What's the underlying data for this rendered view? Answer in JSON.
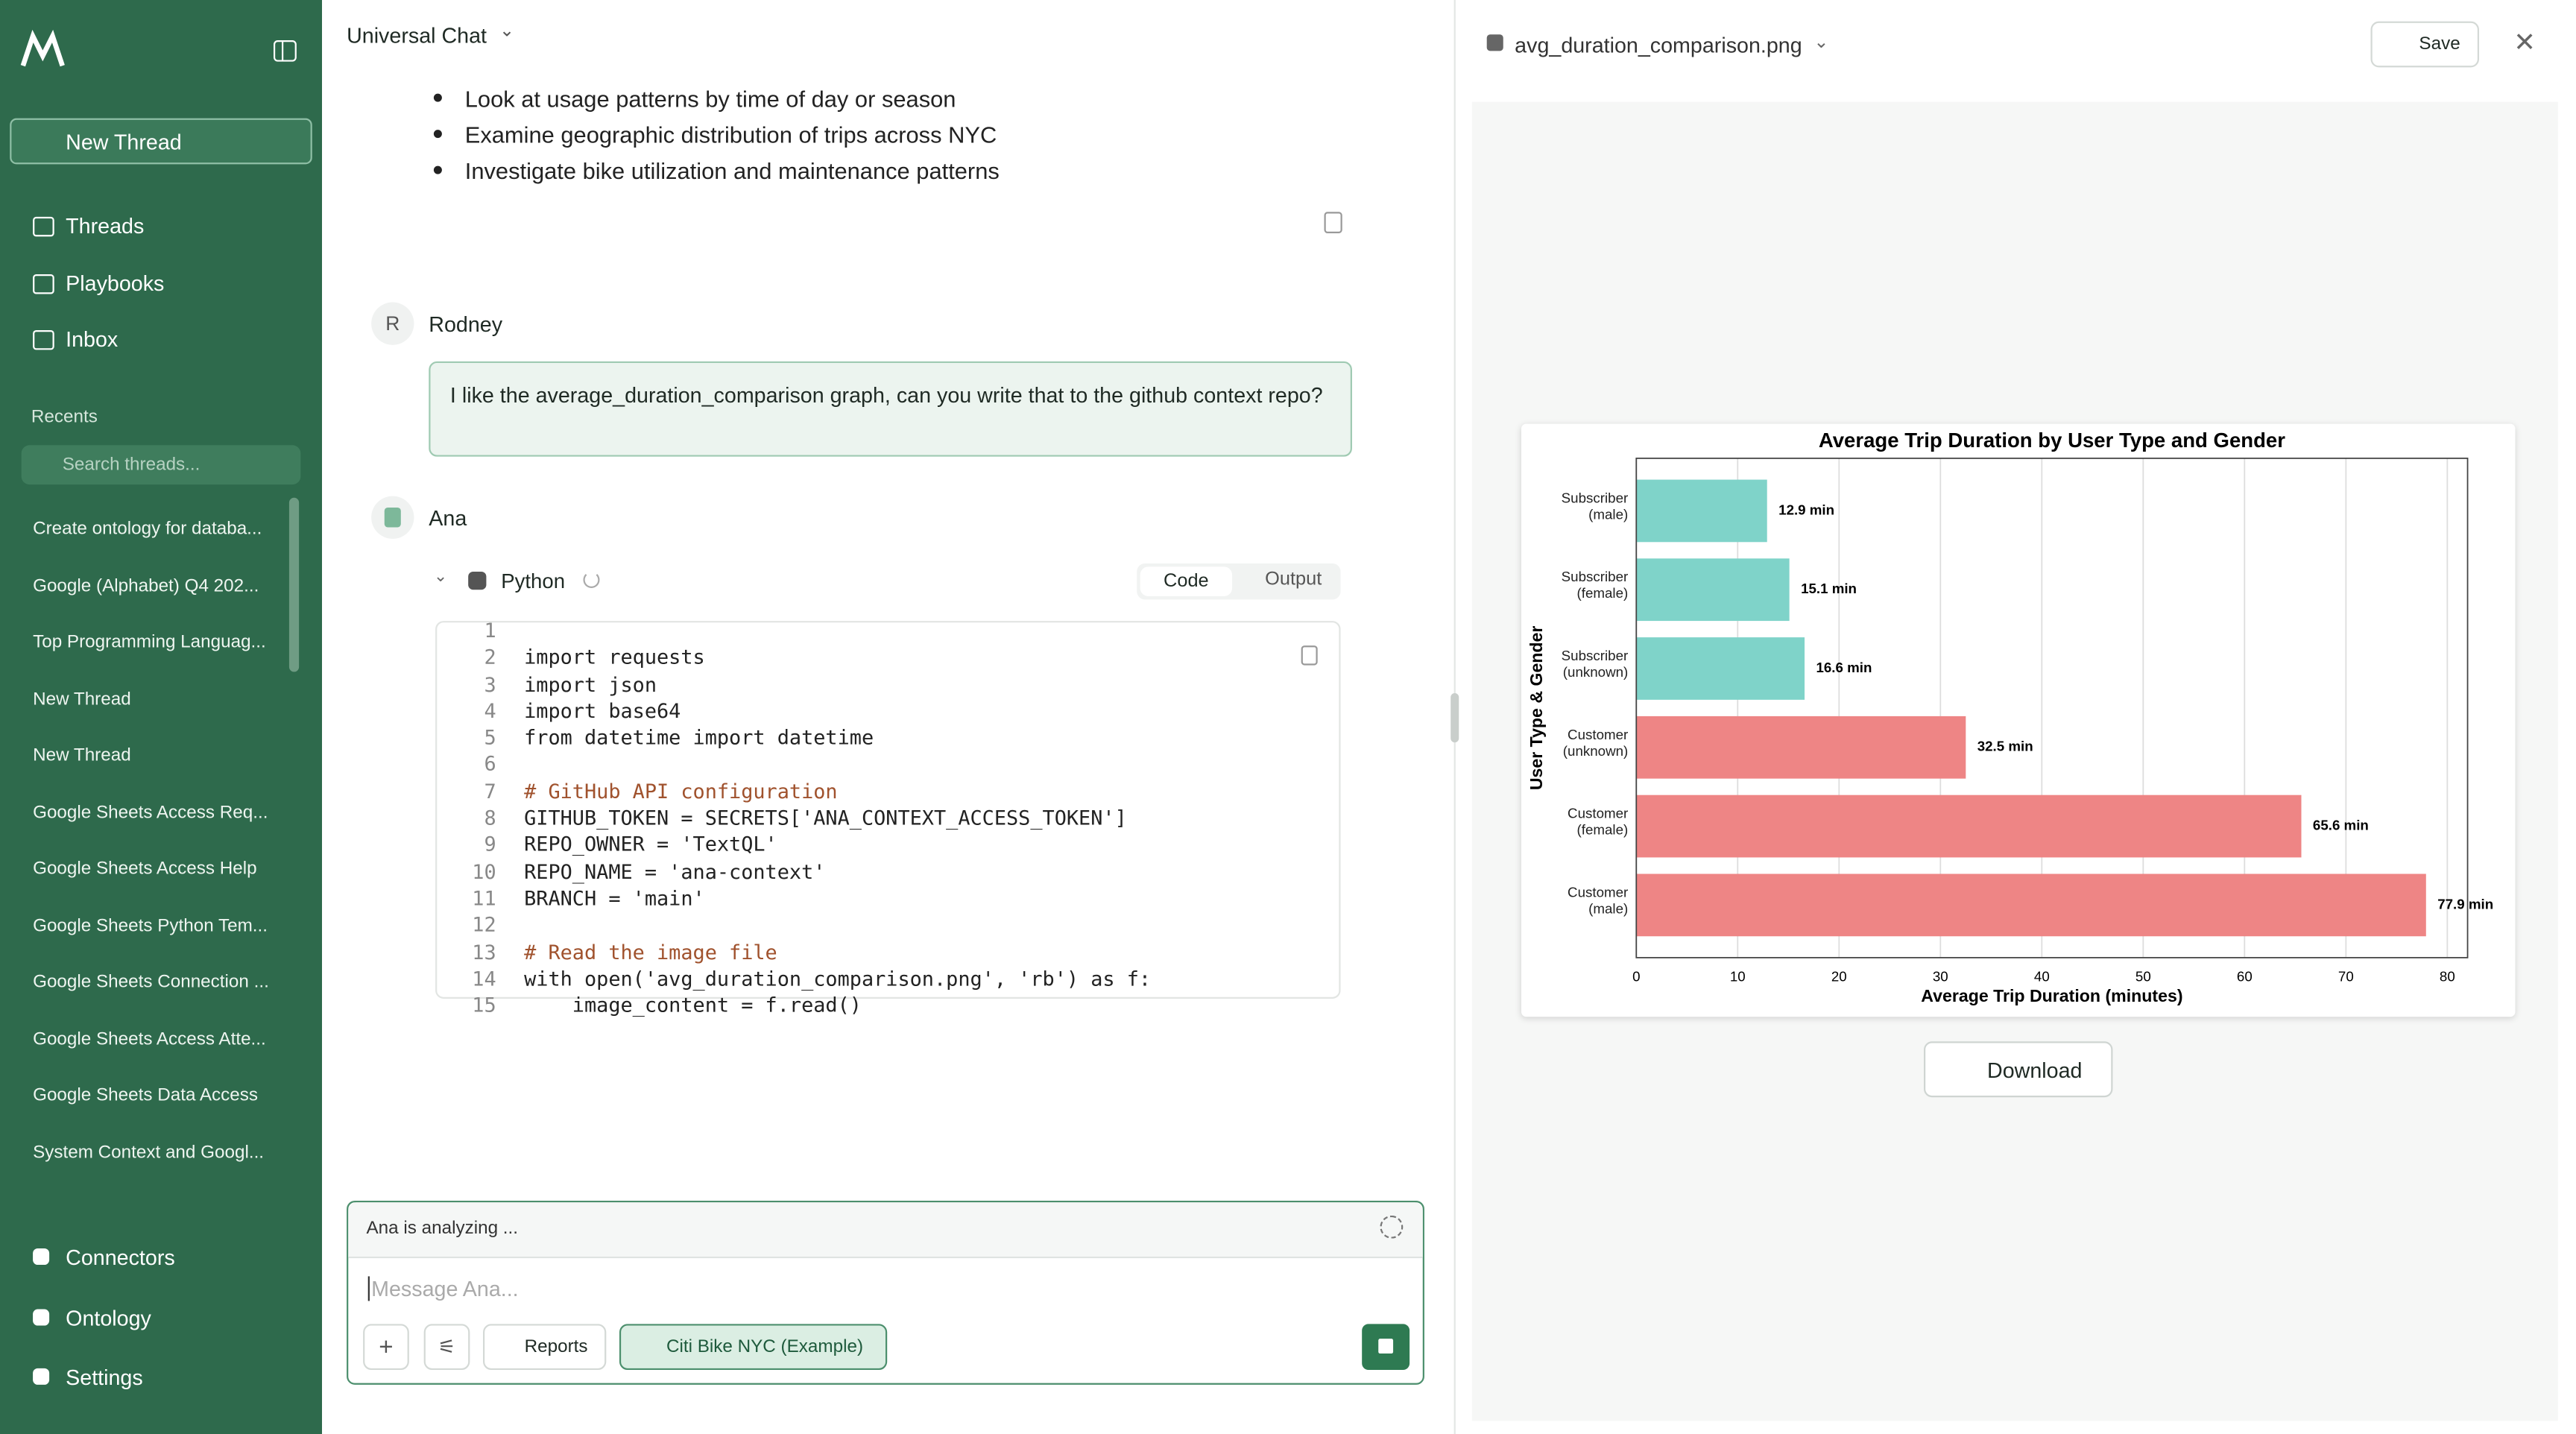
{
  "sidebar": {
    "new_thread": "New Thread",
    "nav": [
      "Threads",
      "Playbooks",
      "Inbox"
    ],
    "recents_label": "Recents",
    "search_placeholder": "Search threads...",
    "recents": [
      "Create ontology for databa...",
      "Google (Alphabet) Q4 202...",
      "Top Programming Languag...",
      "New Thread",
      "New Thread",
      "Google Sheets Access Req...",
      "Google Sheets Access Help",
      "Google Sheets Python Tem...",
      "Google Sheets Connection ...",
      "Google Sheets Access Atte...",
      "Google Sheets Data Access",
      "System Context and Googl..."
    ],
    "bottom": [
      "Connectors",
      "Ontology",
      "Settings"
    ]
  },
  "header": {
    "title": "Universal Chat"
  },
  "messages": {
    "bullets": [
      "Look at usage patterns by time of day or season",
      "Examine geographic distribution of trips across NYC",
      "Investigate bike utilization and maintenance patterns"
    ],
    "user": {
      "initial": "R",
      "name": "Rodney",
      "text": "I like the average_duration_comparison graph, can you write that to the github context repo?"
    },
    "assistant": {
      "name": "Ana",
      "tool": "Python",
      "tabs": [
        "Code",
        "Output"
      ],
      "code": [
        [
          "1",
          ""
        ],
        [
          "2",
          "import requests"
        ],
        [
          "3",
          "import json"
        ],
        [
          "4",
          "import base64"
        ],
        [
          "5",
          "from datetime import datetime"
        ],
        [
          "6",
          ""
        ],
        [
          "7",
          "# GitHub API configuration"
        ],
        [
          "8",
          "GITHUB_TOKEN = SECRETS['ANA_CONTEXT_ACCESS_TOKEN']"
        ],
        [
          "9",
          "REPO_OWNER = 'TextQL'"
        ],
        [
          "10",
          "REPO_NAME = 'ana-context'"
        ],
        [
          "11",
          "BRANCH = 'main'"
        ],
        [
          "12",
          ""
        ],
        [
          "13",
          "# Read the image file"
        ],
        [
          "14",
          "with open('avg_duration_comparison.png', 'rb') as f:"
        ],
        [
          "15",
          "    image_content = f.read()"
        ]
      ]
    }
  },
  "composer": {
    "status": "Ana is analyzing ...",
    "placeholder": "Message Ana...",
    "reports": "Reports",
    "connector": "Citi Bike NYC (Example)"
  },
  "preview": {
    "filename": "avg_duration_comparison.png",
    "save": "Save",
    "download": "Download"
  },
  "chart_data": {
    "type": "hbar",
    "title": "Average Trip Duration by User Type and Gender",
    "x_label": "Average Trip Duration (minutes)",
    "y_label": "User Type & Gender",
    "categories": [
      "Subscriber\n(male)",
      "Subscriber\n(female)",
      "Subscriber\n(unknown)",
      "Customer\n(unknown)",
      "Customer\n(female)",
      "Customer\n(male)"
    ],
    "values": [
      12.9,
      15.1,
      16.6,
      32.5,
      65.6,
      77.9
    ],
    "value_labels": [
      "12.9 min",
      "15.1 min",
      "16.6 min",
      "32.5 min",
      "65.6 min",
      "77.9 min"
    ],
    "colors": [
      "#7fd3c9",
      "#7fd3c9",
      "#7fd3c9",
      "#ee8585",
      "#ee8585",
      "#ee8585"
    ],
    "xlim": [
      0,
      82
    ],
    "xticks": [
      0,
      10,
      20,
      30,
      40,
      50,
      60,
      70,
      80
    ],
    "grid": true
  }
}
